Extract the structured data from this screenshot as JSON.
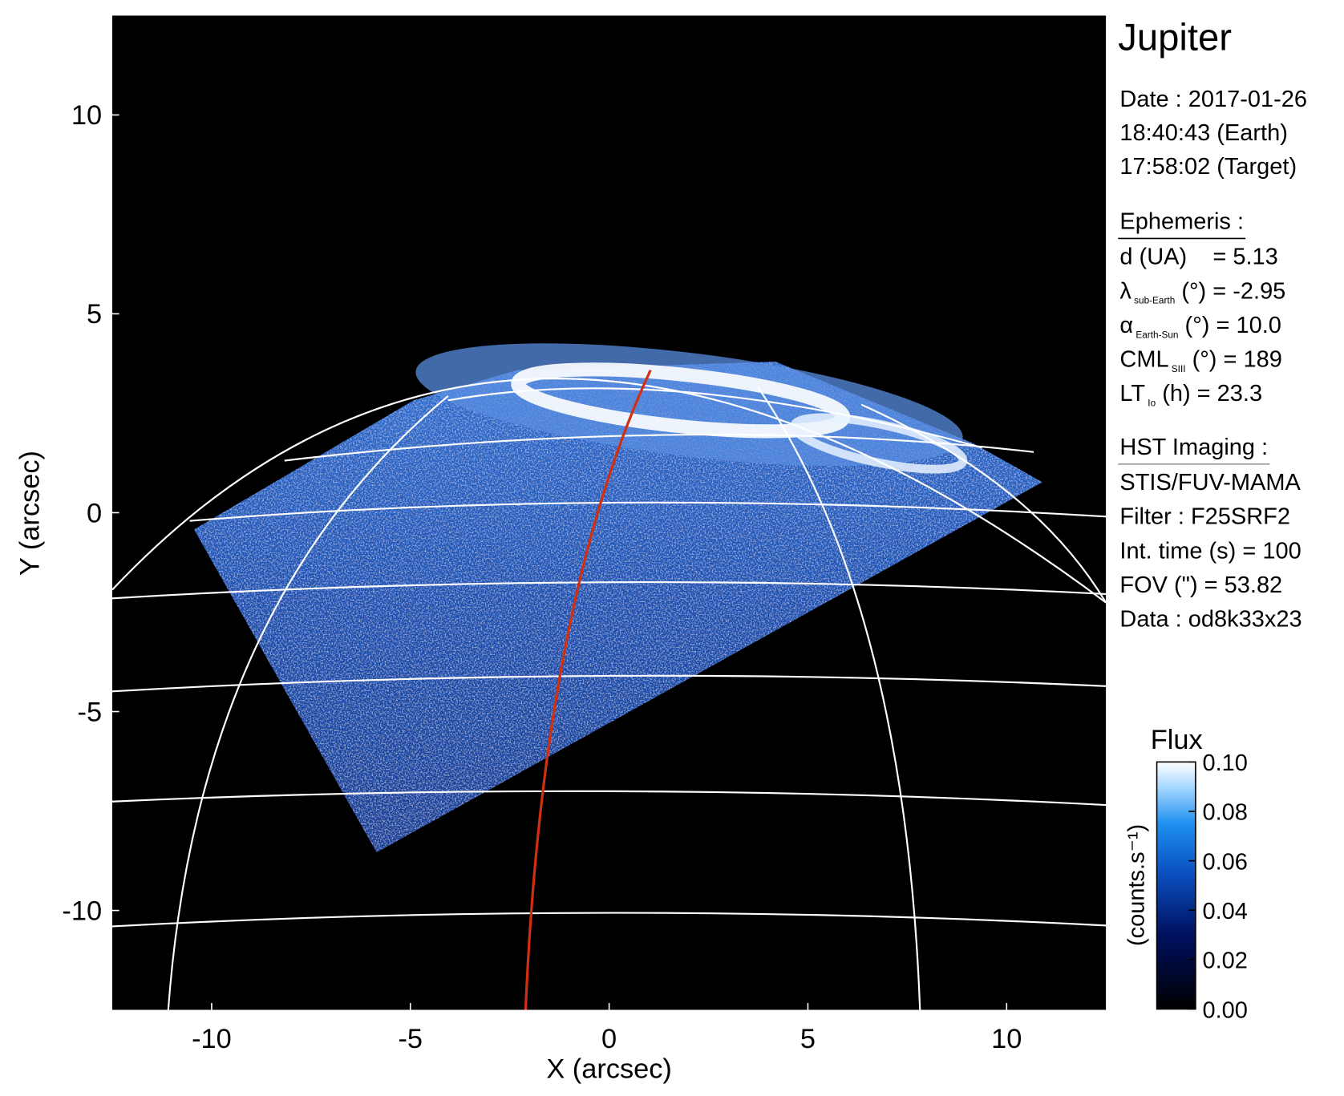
{
  "chart_data": {
    "type": "image",
    "title": "Jupiter",
    "xlabel": "X (arcsec)",
    "ylabel": "Y (arcsec)",
    "xlim": [
      -12.5,
      12.5
    ],
    "ylim": [
      -12.5,
      12.5
    ],
    "xticks": [
      -10,
      -5,
      0,
      5,
      10
    ],
    "yticks": [
      -10,
      -5,
      0,
      5,
      10
    ],
    "date_lines": [
      "Date : 2017-01-26",
      "18:40:43 (Earth)",
      "17:58:02 (Target)"
    ],
    "ephemeris": {
      "heading": "Ephemeris :",
      "lines": [
        {
          "text": "d (UA)    = 5.13"
        },
        {
          "text": "λ",
          "sub": "sub-Earth",
          "after": " (°) = -2.95"
        },
        {
          "text": "α",
          "sub": "Earth-Sun",
          "after": " (°) = 10.0"
        },
        {
          "text": "CML",
          "sub": "SIII",
          "after": " (°) = 189"
        },
        {
          "text": "LT",
          "sub": "Io",
          "after": " (h) = 23.3"
        }
      ]
    },
    "hst_imaging": {
      "heading": "HST Imaging :",
      "lines": [
        "STIS/FUV-MAMA",
        "Filter : F25SRF2",
        "Int. time (s) = 100",
        "FOV (\") = 53.82",
        "Data : od8k33x23"
      ]
    },
    "colorbar": {
      "title": "Flux",
      "label": "(counts.s⁻¹)",
      "clim": [
        0,
        0.1
      ],
      "ticks": [
        {
          "value": 0,
          "label": "0.00"
        },
        {
          "value": 0.02,
          "label": "0.02"
        },
        {
          "value": 0.04,
          "label": "0.04"
        },
        {
          "value": 0.06,
          "label": "0.06"
        },
        {
          "value": 0.08,
          "label": "0.08"
        },
        {
          "value": 0.1,
          "label": "0.10"
        }
      ]
    }
  }
}
